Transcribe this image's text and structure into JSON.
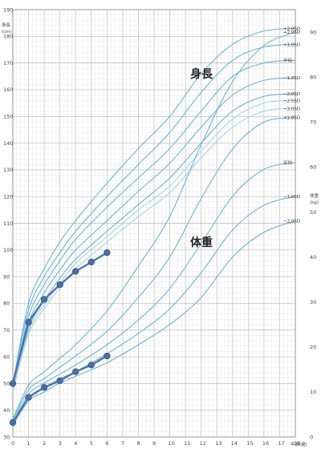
{
  "chart_data": {
    "type": "line",
    "height_axis": {
      "label": "身長",
      "unit": "(cm)",
      "ylim": [
        30,
        190
      ],
      "ticks": [
        30,
        40,
        50,
        60,
        70,
        80,
        90,
        100,
        110,
        120,
        130,
        140,
        150,
        160,
        170,
        180,
        190
      ]
    },
    "weight_axis": {
      "label": "体重",
      "unit": "(kg)",
      "ylim": [
        0,
        95
      ],
      "ticks": [
        0,
        10,
        20,
        30,
        40,
        50,
        60,
        70,
        80,
        90
      ]
    },
    "x_axis": {
      "label": "年齢(歳)",
      "xlim": [
        0,
        18
      ],
      "ticks": [
        0,
        1,
        2,
        3,
        4,
        5,
        6,
        7,
        8,
        9,
        10,
        11,
        12,
        13,
        14,
        15,
        16,
        17,
        18
      ]
    },
    "height_title": "身長",
    "weight_title": "体重",
    "grid": true,
    "line_color": "#6ab4d8",
    "patient_color": "#4a6fa5",
    "age_points": [
      0,
      1,
      2,
      3,
      4,
      6,
      8,
      10,
      12,
      14,
      16,
      18
    ],
    "height_curves": [
      {
        "name": "+2.0SD",
        "values": [
          50,
          80,
          93,
          103,
          111,
          125,
          138,
          150,
          166,
          177,
          182,
          183
        ]
      },
      {
        "name": "+1.0SD",
        "values": [
          50,
          77.5,
          90,
          99,
          107,
          120,
          132,
          144,
          159,
          171,
          176,
          177
        ]
      },
      {
        "name": "平均",
        "values": [
          49,
          75,
          87,
          96,
          104,
          116,
          127,
          138,
          152,
          165,
          170,
          171
        ]
      },
      {
        "name": "−1.0SD",
        "values": [
          48.5,
          72.5,
          84,
          92.5,
          100,
          111,
          122,
          132.5,
          146,
          158,
          163.5,
          164.5
        ]
      },
      {
        "name": "−2.0SD",
        "values": [
          48,
          70.5,
          81,
          89.5,
          96.5,
          107,
          117,
          127,
          140,
          152,
          157.5,
          158.5
        ]
      },
      {
        "name": "−2.5SD",
        "values": [
          47.5,
          69.5,
          79.5,
          87.5,
          95,
          105,
          115,
          124,
          137,
          149,
          155,
          156
        ]
      },
      {
        "name": "−3.0SD",
        "values": [
          47,
          68.5,
          78,
          86,
          93,
          103,
          112.5,
          121.5,
          134.5,
          146,
          152,
          153
        ]
      }
    ],
    "weight_curves": [
      {
        "name": "+2.0SD",
        "values": [
          4,
          11.5,
          14.5,
          17.5,
          20.5,
          28,
          38,
          49,
          65,
          79,
          87,
          90
        ]
      },
      {
        "name": "+1.0SD",
        "values": [
          3.6,
          10.5,
          13,
          15.5,
          18,
          23.5,
          31,
          40,
          53,
          64,
          70,
          71
        ]
      },
      {
        "name": "平均",
        "values": [
          3.2,
          9.5,
          12,
          14,
          16,
          20.5,
          26,
          33,
          43,
          53.5,
          59.5,
          61
        ]
      },
      {
        "name": "−1.0SD",
        "values": [
          2.9,
          8.8,
          11,
          13,
          14.5,
          18.5,
          23,
          28.5,
          36.5,
          46,
          51.5,
          53.5
        ]
      },
      {
        "name": "−2.0SD",
        "values": [
          2.6,
          8,
          10,
          12,
          13.5,
          16.5,
          20.5,
          25,
          31,
          40,
          45.5,
          48
        ]
      }
    ],
    "patient_height": {
      "x": [
        0,
        1,
        2,
        3,
        4,
        5,
        6
      ],
      "values": [
        50,
        73,
        81.5,
        87,
        92,
        95.5,
        99
      ]
    },
    "patient_weight": {
      "x": [
        0,
        1,
        2,
        3,
        4,
        5,
        6
      ],
      "values": [
        3.2,
        8.8,
        11,
        12.5,
        14.5,
        16,
        18
      ]
    }
  }
}
